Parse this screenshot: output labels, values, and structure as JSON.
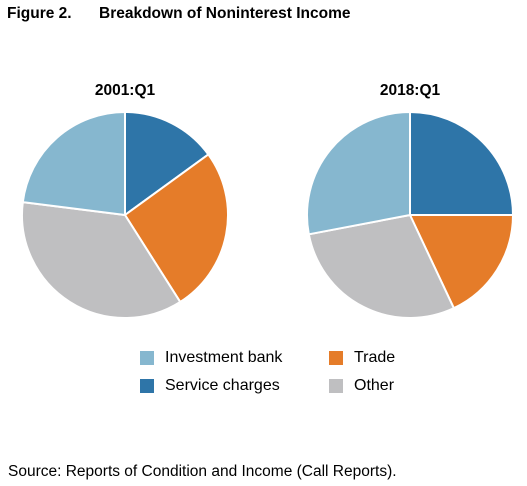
{
  "figure": {
    "label": "Figure 2.",
    "title": "Breakdown of Noninterest Income"
  },
  "source": "Source: Reports of Condition and Income (Call Reports).",
  "chart_data": [
    {
      "type": "pie",
      "title": "2001:Q1",
      "slices": [
        {
          "name": "Service charges",
          "value": 15,
          "color": "#2e75a8"
        },
        {
          "name": "Trade",
          "value": 26,
          "color": "#e57c29"
        },
        {
          "name": "Other",
          "value": 36,
          "color": "#bfbfc1"
        },
        {
          "name": "Investment bank",
          "value": 23,
          "color": "#86b7cf"
        }
      ],
      "legend_position": "bottom"
    },
    {
      "type": "pie",
      "title": "2018:Q1",
      "slices": [
        {
          "name": "Service charges",
          "value": 25,
          "color": "#2e75a8"
        },
        {
          "name": "Trade",
          "value": 18,
          "color": "#e57c29"
        },
        {
          "name": "Other",
          "value": 29,
          "color": "#bfbfc1"
        },
        {
          "name": "Investment bank",
          "value": 28,
          "color": "#86b7cf"
        }
      ],
      "legend_position": "bottom"
    }
  ],
  "legend": [
    {
      "label": "Investment bank",
      "color": "#86b7cf"
    },
    {
      "label": "Trade",
      "color": "#e57c29"
    },
    {
      "label": "Service charges",
      "color": "#2e75a8"
    },
    {
      "label": "Other",
      "color": "#bfbfc1"
    }
  ]
}
